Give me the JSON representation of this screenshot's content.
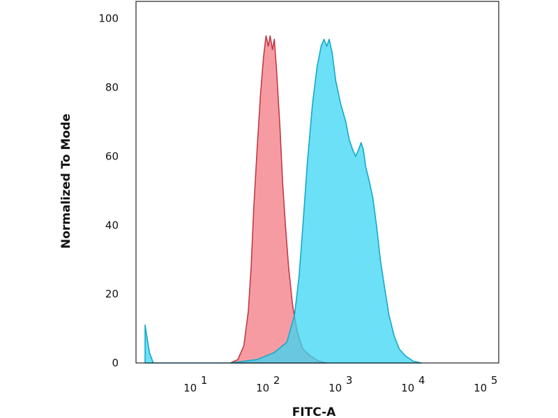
{
  "chart_data": {
    "type": "area",
    "title": "",
    "xlabel": "FITC-A",
    "ylabel": "Normalized To Mode",
    "x_scale": "log",
    "xlim": [
      1.5,
      150000
    ],
    "ylim": [
      0,
      105
    ],
    "x_ticks": [
      {
        "value": 10,
        "base": "10",
        "exp": "1"
      },
      {
        "value": 100,
        "base": "10",
        "exp": "2"
      },
      {
        "value": 1000,
        "base": "10",
        "exp": "3"
      },
      {
        "value": 10000,
        "base": "10",
        "exp": "4"
      },
      {
        "value": 100000,
        "base": "10",
        "exp": "5"
      }
    ],
    "y_ticks": [
      {
        "value": 0,
        "label": "0"
      },
      {
        "value": 20,
        "label": "20"
      },
      {
        "value": 40,
        "label": "40"
      },
      {
        "value": 60,
        "label": "60"
      },
      {
        "value": 80,
        "label": "80"
      },
      {
        "value": 100,
        "label": "100"
      }
    ],
    "grid": false,
    "legend": "none",
    "series": [
      {
        "fill": "#f47a84",
        "stroke": "#c03a45",
        "points": [
          [
            30,
            0
          ],
          [
            38,
            1
          ],
          [
            46,
            5
          ],
          [
            53,
            15
          ],
          [
            58,
            28
          ],
          [
            63,
            45
          ],
          [
            70,
            62
          ],
          [
            78,
            78
          ],
          [
            86,
            89
          ],
          [
            93,
            95
          ],
          [
            100,
            92
          ],
          [
            106,
            95
          ],
          [
            114,
            91
          ],
          [
            121,
            94
          ],
          [
            130,
            85
          ],
          [
            145,
            68
          ],
          [
            158,
            52
          ],
          [
            172,
            40
          ],
          [
            190,
            28
          ],
          [
            215,
            17
          ],
          [
            250,
            9
          ],
          [
            300,
            4
          ],
          [
            380,
            2
          ],
          [
            500,
            0.5
          ],
          [
            650,
            0
          ]
        ]
      },
      {
        "fill": "#3ad6f4",
        "stroke": "#16a8c8",
        "points": [
          [
            2,
            11
          ],
          [
            2.3,
            3
          ],
          [
            2.6,
            0
          ],
          [
            3.1,
            0
          ],
          [
            10,
            0
          ],
          [
            30,
            0
          ],
          [
            70,
            1
          ],
          [
            120,
            3
          ],
          [
            180,
            6
          ],
          [
            230,
            14
          ],
          [
            265,
            25
          ],
          [
            300,
            40
          ],
          [
            345,
            58
          ],
          [
            405,
            75
          ],
          [
            470,
            86
          ],
          [
            535,
            92
          ],
          [
            585,
            94
          ],
          [
            640,
            92
          ],
          [
            690,
            94
          ],
          [
            760,
            90
          ],
          [
            850,
            82
          ],
          [
            1000,
            75
          ],
          [
            1170,
            70
          ],
          [
            1300,
            65
          ],
          [
            1450,
            62
          ],
          [
            1600,
            60
          ],
          [
            1760,
            62
          ],
          [
            1900,
            64
          ],
          [
            2040,
            62
          ],
          [
            2200,
            57
          ],
          [
            2450,
            53
          ],
          [
            2760,
            48
          ],
          [
            3100,
            40
          ],
          [
            3500,
            30
          ],
          [
            4000,
            22
          ],
          [
            4600,
            14
          ],
          [
            5400,
            8
          ],
          [
            6400,
            4
          ],
          [
            7800,
            2
          ],
          [
            10000,
            0.5
          ],
          [
            13000,
            0
          ]
        ]
      }
    ]
  }
}
